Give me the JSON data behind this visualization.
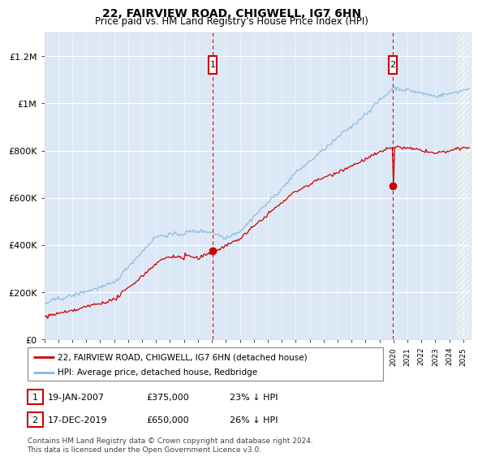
{
  "title": "22, FAIRVIEW ROAD, CHIGWELL, IG7 6HN",
  "subtitle": "Price paid vs. HM Land Registry's House Price Index (HPI)",
  "legend_line1": "22, FAIRVIEW ROAD, CHIGWELL, IG7 6HN (detached house)",
  "legend_line2": "HPI: Average price, detached house, Redbridge",
  "footnote": "Contains HM Land Registry data © Crown copyright and database right 2024.\nThis data is licensed under the Open Government Licence v3.0.",
  "annotation1_date": "19-JAN-2007",
  "annotation1_price": "£375,000",
  "annotation1_hpi": "23% ↓ HPI",
  "annotation2_date": "17-DEC-2019",
  "annotation2_price": "£650,000",
  "annotation2_hpi": "26% ↓ HPI",
  "hpi_color": "#82b8e0",
  "price_color": "#cc0000",
  "chart_bg_color": "#dce8f5",
  "annotation_color": "#cc0000",
  "ylim": [
    0,
    1300000
  ],
  "yticks": [
    0,
    200000,
    400000,
    600000,
    800000,
    1000000,
    1200000
  ],
  "ytick_labels": [
    "£0",
    "£200K",
    "£400K",
    "£600K",
    "£800K",
    "£1M",
    "£1.2M"
  ],
  "sale1_x": 2007.05,
  "sale1_y": 375000,
  "sale2_x": 2019.96,
  "sale2_y": 650000,
  "xlim_start": 1995.0,
  "xlim_end": 2025.5
}
